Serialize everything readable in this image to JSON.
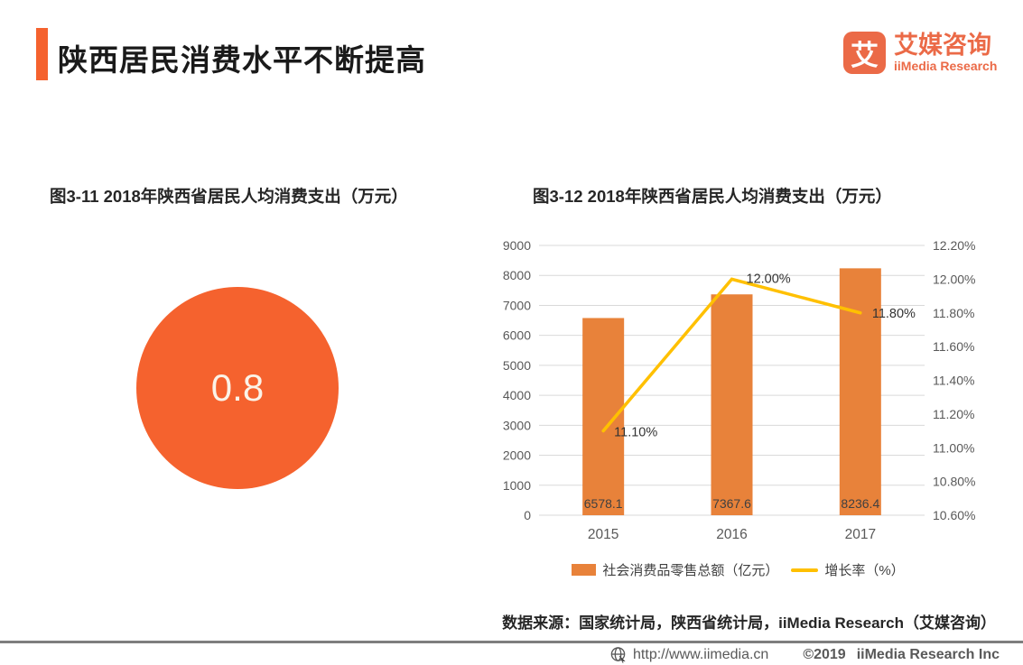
{
  "page": {
    "title": "陕西居民消费水平不断提高",
    "accent_color": "#F5622E"
  },
  "logo": {
    "glyph": "艾",
    "name_cn": "艾媒咨询",
    "name_en": "iiMedia Research",
    "color": "#EB6A47"
  },
  "chart_data": [
    {
      "type": "bubble",
      "title": "图3-11 2018年陕西省居民人均消费支出（万元）",
      "value": 0.8,
      "label": "0.8",
      "color": "#F5622E"
    },
    {
      "type": "combo",
      "title": "图3-12 2018年陕西省居民人均消费支出（万元）",
      "categories": [
        "2015",
        "2016",
        "2017"
      ],
      "series": [
        {
          "name": "社会消费品零售总额（亿元）",
          "chart": "bar",
          "axis": "left",
          "values": [
            6578.1,
            7367.6,
            8236.4
          ],
          "labels": [
            "6578.1",
            "7367.6",
            "8236.4"
          ],
          "color": "#E8823A"
        },
        {
          "name": "增长率（%）",
          "chart": "line",
          "axis": "right",
          "values": [
            11.1,
            12.0,
            11.8
          ],
          "labels": [
            "11.10%",
            "12.00%",
            "11.80%"
          ],
          "color": "#FFC000"
        }
      ],
      "left_axis": {
        "min": 0,
        "max": 9000,
        "step": 1000
      },
      "right_axis": {
        "min": 10.6,
        "max": 12.2,
        "step": 0.2,
        "suffix": "%"
      },
      "grid": true,
      "legend_position": "bottom",
      "grid_color": "#D9D9D9",
      "tick_color": "#595959",
      "data_label_color": "#404040"
    }
  ],
  "footer": {
    "source": "数据来源：国家统计局，陕西省统计局，iiMedia Research（艾媒咨询）",
    "url": "http://www.iimedia.cn",
    "copyright_year": "©2019",
    "copyright_name": "iiMedia Research Inc"
  }
}
